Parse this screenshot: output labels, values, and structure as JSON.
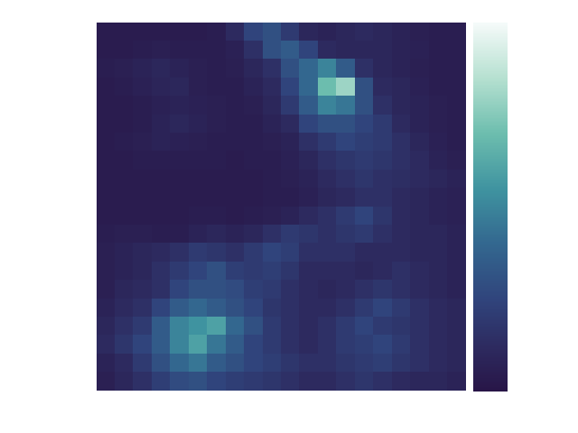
{
  "chart_data": {
    "type": "heatmap",
    "xlim": [
      0,
      20
    ],
    "ylim": [
      0,
      20
    ],
    "zlim": [
      0,
      1
    ],
    "tick_labels": false,
    "cells": [
      [
        0.04,
        0.04,
        0.04,
        0.04,
        0.04,
        0.04,
        0.05,
        0.12,
        0.25,
        0.3,
        0.2,
        0.1,
        0.08,
        0.1,
        0.12,
        0.1,
        0.08,
        0.06,
        0.05,
        0.05
      ],
      [
        0.04,
        0.04,
        0.05,
        0.06,
        0.05,
        0.05,
        0.05,
        0.07,
        0.15,
        0.3,
        0.35,
        0.25,
        0.12,
        0.1,
        0.1,
        0.1,
        0.08,
        0.07,
        0.05,
        0.05
      ],
      [
        0.05,
        0.06,
        0.08,
        0.1,
        0.08,
        0.06,
        0.05,
        0.06,
        0.1,
        0.15,
        0.3,
        0.4,
        0.5,
        0.35,
        0.15,
        0.1,
        0.08,
        0.06,
        0.05,
        0.05
      ],
      [
        0.04,
        0.05,
        0.07,
        0.09,
        0.1,
        0.06,
        0.05,
        0.05,
        0.08,
        0.12,
        0.25,
        0.4,
        0.7,
        0.8,
        0.3,
        0.12,
        0.1,
        0.07,
        0.05,
        0.05
      ],
      [
        0.04,
        0.04,
        0.05,
        0.07,
        0.08,
        0.07,
        0.06,
        0.05,
        0.06,
        0.1,
        0.2,
        0.35,
        0.5,
        0.45,
        0.3,
        0.15,
        0.1,
        0.08,
        0.06,
        0.05
      ],
      [
        0.04,
        0.04,
        0.05,
        0.08,
        0.1,
        0.08,
        0.06,
        0.05,
        0.05,
        0.08,
        0.12,
        0.25,
        0.3,
        0.3,
        0.25,
        0.2,
        0.12,
        0.08,
        0.06,
        0.05
      ],
      [
        0.04,
        0.05,
        0.06,
        0.08,
        0.07,
        0.06,
        0.05,
        0.05,
        0.05,
        0.06,
        0.08,
        0.15,
        0.2,
        0.25,
        0.22,
        0.2,
        0.15,
        0.1,
        0.07,
        0.05
      ],
      [
        0.04,
        0.04,
        0.05,
        0.05,
        0.05,
        0.05,
        0.05,
        0.04,
        0.05,
        0.05,
        0.07,
        0.1,
        0.15,
        0.18,
        0.2,
        0.18,
        0.15,
        0.12,
        0.08,
        0.06
      ],
      [
        0.04,
        0.04,
        0.04,
        0.04,
        0.04,
        0.04,
        0.04,
        0.04,
        0.04,
        0.05,
        0.06,
        0.08,
        0.12,
        0.15,
        0.18,
        0.15,
        0.14,
        0.12,
        0.1,
        0.08
      ],
      [
        0.04,
        0.04,
        0.04,
        0.04,
        0.04,
        0.04,
        0.04,
        0.04,
        0.04,
        0.05,
        0.05,
        0.07,
        0.1,
        0.12,
        0.15,
        0.15,
        0.12,
        0.1,
        0.08,
        0.07
      ],
      [
        0.04,
        0.04,
        0.04,
        0.04,
        0.04,
        0.05,
        0.05,
        0.04,
        0.05,
        0.06,
        0.08,
        0.12,
        0.15,
        0.2,
        0.25,
        0.18,
        0.12,
        0.1,
        0.08,
        0.07
      ],
      [
        0.05,
        0.06,
        0.06,
        0.05,
        0.05,
        0.08,
        0.1,
        0.08,
        0.1,
        0.15,
        0.2,
        0.18,
        0.15,
        0.18,
        0.2,
        0.15,
        0.12,
        0.1,
        0.1,
        0.08
      ],
      [
        0.06,
        0.08,
        0.1,
        0.12,
        0.15,
        0.2,
        0.18,
        0.15,
        0.2,
        0.25,
        0.22,
        0.15,
        0.15,
        0.15,
        0.12,
        0.12,
        0.12,
        0.1,
        0.1,
        0.08
      ],
      [
        0.06,
        0.08,
        0.1,
        0.15,
        0.2,
        0.25,
        0.3,
        0.22,
        0.2,
        0.22,
        0.18,
        0.12,
        0.12,
        0.12,
        0.1,
        0.12,
        0.15,
        0.12,
        0.1,
        0.08
      ],
      [
        0.06,
        0.1,
        0.12,
        0.15,
        0.25,
        0.3,
        0.3,
        0.28,
        0.22,
        0.2,
        0.15,
        0.12,
        0.1,
        0.12,
        0.15,
        0.18,
        0.15,
        0.12,
        0.1,
        0.08
      ],
      [
        0.08,
        0.12,
        0.15,
        0.25,
        0.35,
        0.4,
        0.35,
        0.3,
        0.25,
        0.18,
        0.15,
        0.12,
        0.12,
        0.15,
        0.2,
        0.25,
        0.2,
        0.15,
        0.12,
        0.1
      ],
      [
        0.1,
        0.15,
        0.2,
        0.35,
        0.5,
        0.55,
        0.6,
        0.4,
        0.3,
        0.2,
        0.15,
        0.12,
        0.15,
        0.2,
        0.25,
        0.2,
        0.18,
        0.15,
        0.12,
        0.1
      ],
      [
        0.12,
        0.18,
        0.25,
        0.35,
        0.5,
        0.6,
        0.45,
        0.35,
        0.25,
        0.2,
        0.15,
        0.12,
        0.15,
        0.2,
        0.22,
        0.25,
        0.2,
        0.15,
        0.12,
        0.1
      ],
      [
        0.08,
        0.12,
        0.2,
        0.3,
        0.4,
        0.45,
        0.35,
        0.3,
        0.25,
        0.22,
        0.18,
        0.15,
        0.15,
        0.18,
        0.2,
        0.22,
        0.18,
        0.15,
        0.12,
        0.1
      ],
      [
        0.06,
        0.1,
        0.15,
        0.22,
        0.28,
        0.3,
        0.25,
        0.22,
        0.2,
        0.18,
        0.15,
        0.12,
        0.12,
        0.15,
        0.18,
        0.15,
        0.12,
        0.1,
        0.1,
        0.08
      ]
    ]
  }
}
